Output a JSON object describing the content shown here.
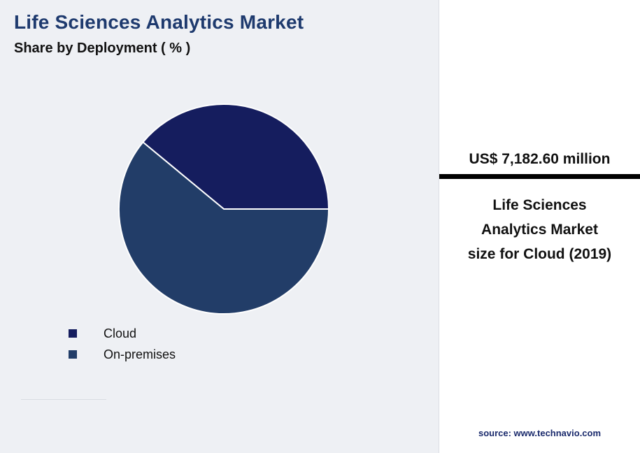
{
  "chart_data": {
    "type": "pie",
    "title": "Life Sciences Analytics Market",
    "subtitle": "Share by Deployment ( % )",
    "unit": "%",
    "start_angle_deg": 0,
    "direction": "counterclockwise",
    "legend_position": "bottom-left",
    "slices": [
      {
        "label": "Cloud",
        "value": 39,
        "color": "#151d5e"
      },
      {
        "label": "On-premises",
        "value": 61,
        "color": "#223d68"
      }
    ]
  },
  "info_panel": {
    "highlight_value": "US$ 7,182.60 million",
    "description": "Life Sciences Analytics Market size for Cloud (2019)",
    "source": "source: www.technavio.com"
  },
  "colors": {
    "background": "#eef0f4",
    "panel_background": "#ffffff",
    "title_text": "#1e3a6e",
    "divider_bar": "#000000",
    "source_text": "#1a2a6c",
    "slice_stroke": "#ffffff"
  }
}
